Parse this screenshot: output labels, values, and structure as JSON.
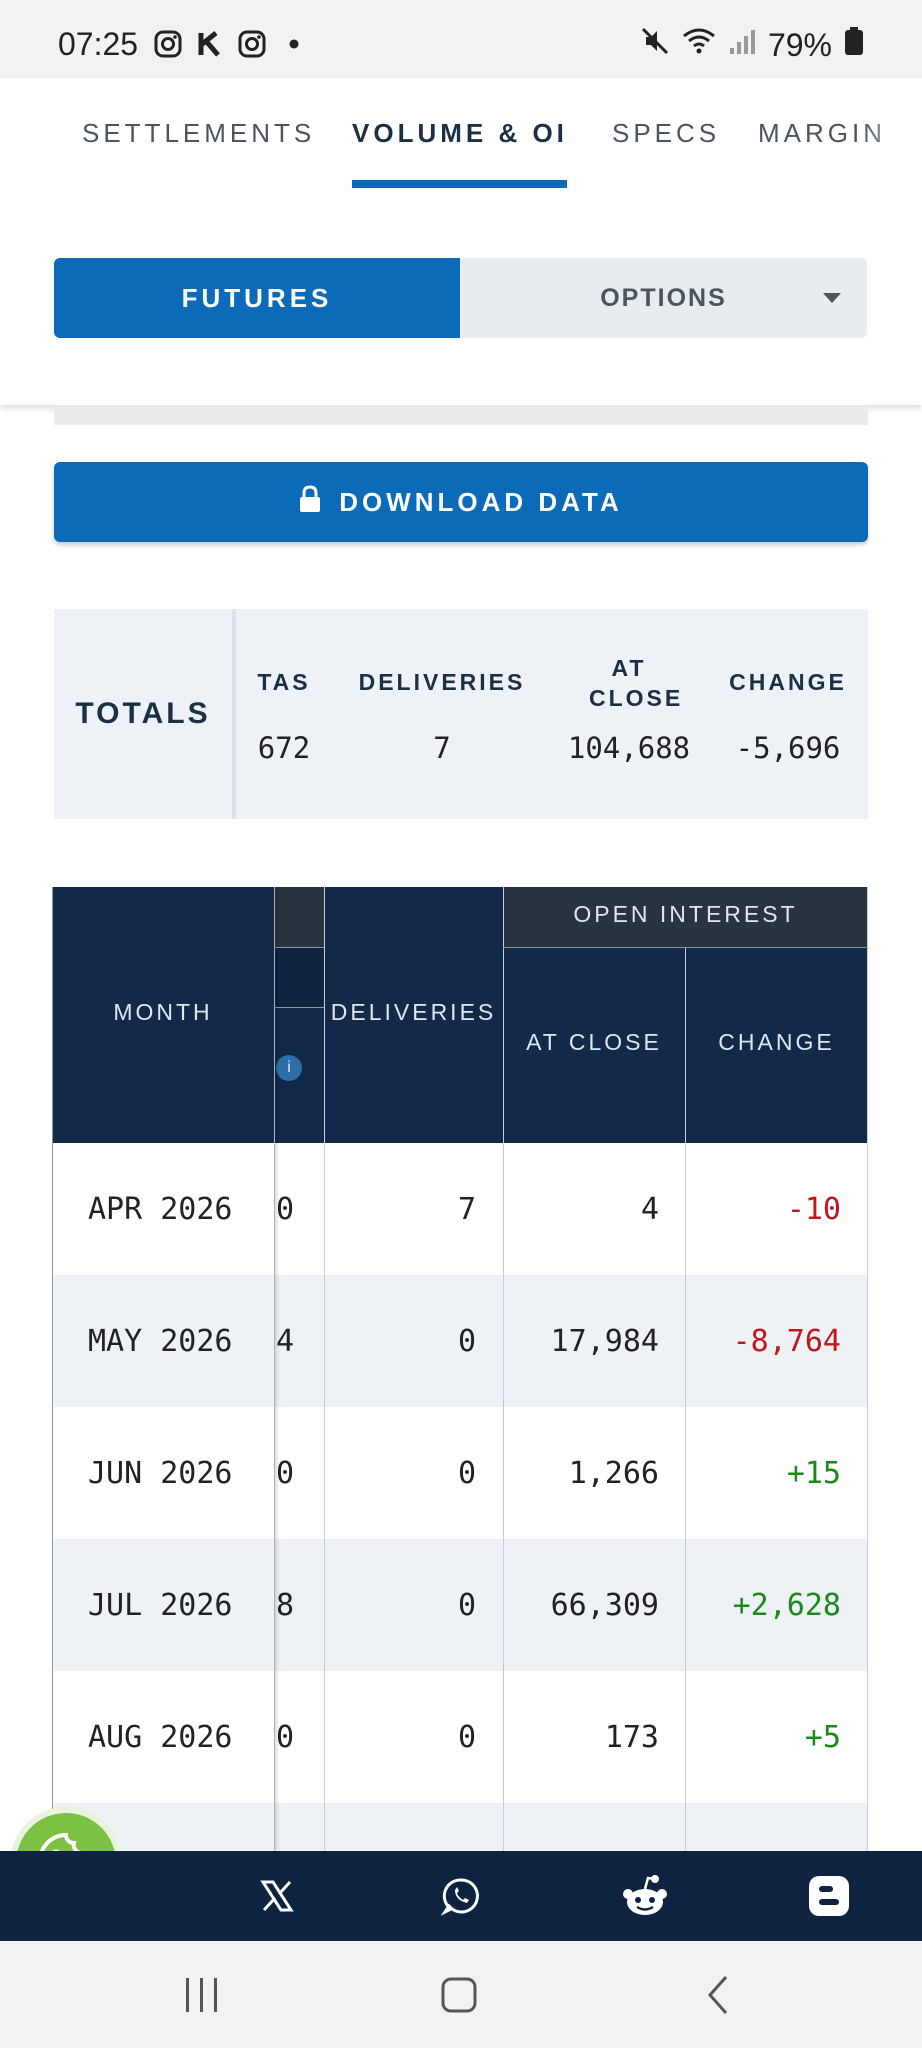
{
  "status_bar": {
    "time": "07:25",
    "battery": "79%",
    "icons": [
      "instagram-icon",
      "k-app-icon",
      "instagram-icon",
      "dot-icon",
      "mute-icon",
      "wifi-icon",
      "signal-icon",
      "battery-icon"
    ]
  },
  "tabs": [
    {
      "label": "SETTLEMENTS",
      "active": false
    },
    {
      "label": "VOLUME & OI",
      "active": true
    },
    {
      "label": "SPECS",
      "active": false
    },
    {
      "label": "MARGIN",
      "active": false
    }
  ],
  "toggle": {
    "futures_label": "FUTURES",
    "options_label": "OPTIONS"
  },
  "download_label": "DOWNLOAD DATA",
  "totals": {
    "label": "TOTALS",
    "columns": [
      {
        "header": "TAS",
        "value": "672"
      },
      {
        "header": "DELIVERIES",
        "value": "7"
      },
      {
        "header": "AT CLOSE",
        "value": "104,688"
      },
      {
        "header": "CHANGE",
        "value": "-5,696"
      }
    ]
  },
  "table": {
    "headers": {
      "month": "MONTH",
      "deliveries": "DELIVERIES",
      "open_interest": "OPEN INTEREST",
      "at_close": "AT CLOSE",
      "change": "CHANGE",
      "info": "i"
    },
    "rows": [
      {
        "month": "APR 2026",
        "partial": "0",
        "deliveries": "7",
        "at_close": "4",
        "change": "-10",
        "trend": "neg"
      },
      {
        "month": "MAY 2026",
        "partial": "4",
        "deliveries": "0",
        "at_close": "17,984",
        "change": "-8,764",
        "trend": "neg"
      },
      {
        "month": "JUN 2026",
        "partial": "0",
        "deliveries": "0",
        "at_close": "1,266",
        "change": "+15",
        "trend": "pos"
      },
      {
        "month": "JUL 2026",
        "partial": "8",
        "deliveries": "0",
        "at_close": "66,309",
        "change": "+2,628",
        "trend": "pos"
      },
      {
        "month": "AUG 2026",
        "partial": "0",
        "deliveries": "0",
        "at_close": "173",
        "change": "+5",
        "trend": "pos"
      }
    ]
  },
  "share_bar": {
    "icons": [
      "x-icon",
      "whatsapp-icon",
      "reddit-icon",
      "blogger-icon"
    ]
  },
  "colors": {
    "primary_blue": "#0b6bb8",
    "header_navy": "#12294a",
    "negative": "#c0171b",
    "positive": "#1b8a1b",
    "cookie_green": "#7cc142"
  }
}
